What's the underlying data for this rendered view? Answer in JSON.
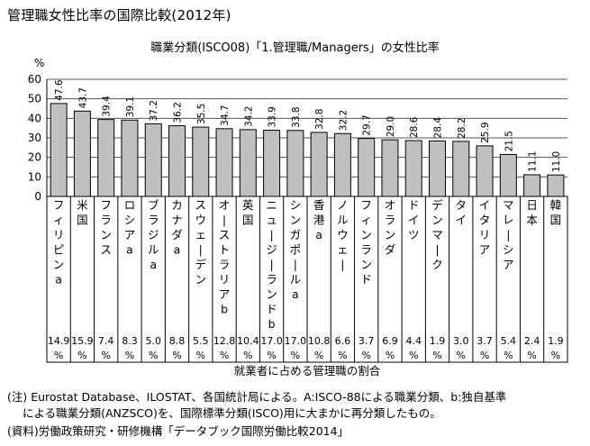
{
  "page": {
    "title": "管理職女性比率の国際比較(2012年)",
    "footnote_line1": "(注) Eurostat Database、ILOSTAT、各国統計局による。A:ISCO-88による職業分類、b:独自基準",
    "footnote_line2": "による職業分類(ANZSCO)を、国際標準分類(ISCO)用に大まかに再分類したもの。",
    "source": "(資料)労働政策研究・研修機構「データブック国際労働比較2014」"
  },
  "chart_data": {
    "type": "bar",
    "title": "職業分類(ISCO08)「1.管理職/Managers」の女性比率",
    "ylabel": "%",
    "ylim": [
      0,
      60
    ],
    "yticks": [
      0,
      10,
      20,
      30,
      40,
      50,
      60
    ],
    "grid": true,
    "categories": [
      "フィリピンa",
      "米国",
      "フランス",
      "ロシアa",
      "ブラジルa",
      "カナダa",
      "スウェーデン",
      "オーストラリアb",
      "英国",
      "ニュージーランドb",
      "シンガポールa",
      "香港a",
      "ノルウェー",
      "フィンランド",
      "オランダ",
      "ドイツ",
      "デンマーク",
      "タイ",
      "イタリア",
      "マレーシア",
      "日本",
      "韓国"
    ],
    "values": [
      47.6,
      43.7,
      39.4,
      39.1,
      37.2,
      36.2,
      35.5,
      34.7,
      34.2,
      33.9,
      33.8,
      32.8,
      32.2,
      29.7,
      29.0,
      28.6,
      28.4,
      28.2,
      25.9,
      21.5,
      11.1,
      11.0
    ],
    "value_labels": [
      "47.6",
      "43.7",
      "39.4",
      "39.1",
      "37.2",
      "36.2",
      "35.5",
      "34.7",
      "34.2",
      "33.9",
      "33.8",
      "32.8",
      "32.2",
      "29.7",
      "29.0",
      "28.6",
      "28.4",
      "28.2",
      "25.9",
      "21.5",
      "11.1",
      "11.0"
    ],
    "bar_color": "#c0c0c0",
    "bar_stroke": "#000000",
    "table": {
      "caption": "就業者に占める管理職の割合",
      "values": [
        "14.9",
        "15.9",
        "7.4",
        "8.3",
        "5.0",
        "8.8",
        "5.5",
        "12.8",
        "10.4",
        "17.0",
        "17.0",
        "10.8",
        "6.6",
        "3.7",
        "6.9",
        "4.4",
        "1.9",
        "3.0",
        "3.7",
        "5.4",
        "2.4",
        "1.9"
      ],
      "unit": "%"
    }
  }
}
